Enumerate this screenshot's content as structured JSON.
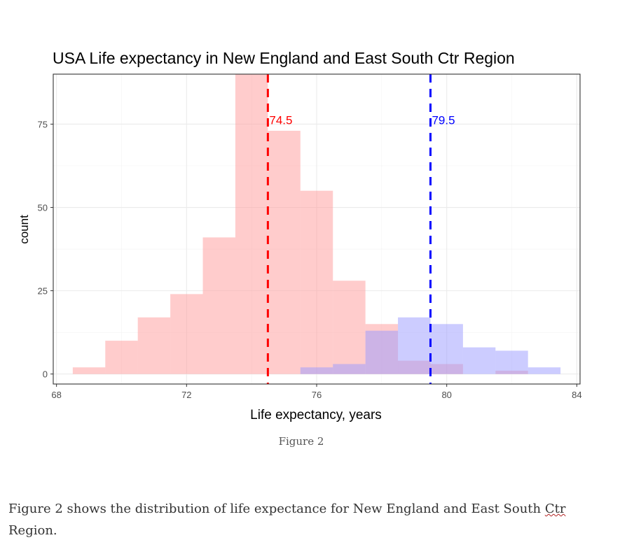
{
  "chart_data": {
    "type": "histogram",
    "title": "USA Life expectancy in New England and East South Ctr Region",
    "xlabel": "Life expectancy, years",
    "ylabel": "count",
    "xlim": [
      67.9,
      84.1
    ],
    "ylim": [
      -3,
      90
    ],
    "x_ticks": [
      68,
      72,
      76,
      80,
      84
    ],
    "y_ticks": [
      0,
      25,
      50,
      75
    ],
    "bin_width": 1,
    "series": [
      {
        "color": "#ff9999",
        "bins": [
          {
            "x0": 68.5,
            "x1": 69.5,
            "count": 2
          },
          {
            "x0": 69.5,
            "x1": 70.5,
            "count": 10
          },
          {
            "x0": 70.5,
            "x1": 71.5,
            "count": 17
          },
          {
            "x0": 71.5,
            "x1": 72.5,
            "count": 24
          },
          {
            "x0": 72.5,
            "x1": 73.5,
            "count": 41
          },
          {
            "x0": 73.5,
            "x1": 74.5,
            "count": 90
          },
          {
            "x0": 74.5,
            "x1": 75.5,
            "count": 73
          },
          {
            "x0": 75.5,
            "x1": 76.5,
            "count": 55
          },
          {
            "x0": 76.5,
            "x1": 77.5,
            "count": 28
          },
          {
            "x0": 77.5,
            "x1": 78.5,
            "count": 15
          },
          {
            "x0": 78.5,
            "x1": 79.5,
            "count": 4
          },
          {
            "x0": 79.5,
            "x1": 80.5,
            "count": 3
          },
          {
            "x0": 80.5,
            "x1": 81.5,
            "count": 0
          },
          {
            "x0": 81.5,
            "x1": 82.5,
            "count": 1
          }
        ]
      },
      {
        "color": "#9999ff",
        "bins": [
          {
            "x0": 75.5,
            "x1": 76.5,
            "count": 2
          },
          {
            "x0": 76.5,
            "x1": 77.5,
            "count": 3
          },
          {
            "x0": 77.5,
            "x1": 78.5,
            "count": 13
          },
          {
            "x0": 78.5,
            "x1": 79.5,
            "count": 17
          },
          {
            "x0": 79.5,
            "x1": 80.5,
            "count": 15
          },
          {
            "x0": 80.5,
            "x1": 81.5,
            "count": 8
          },
          {
            "x0": 81.5,
            "x1": 82.5,
            "count": 7
          },
          {
            "x0": 82.5,
            "x1": 83.5,
            "count": 2
          }
        ]
      }
    ],
    "reference_lines": [
      {
        "x": 74.5,
        "label": "74.5",
        "color": "#ff0000"
      },
      {
        "x": 79.5,
        "label": "79.5",
        "color": "#0000ff"
      }
    ],
    "grid": true
  },
  "figure_caption": "Figure 2",
  "paragraph": {
    "part1": " Figure 2 shows the distribution of life expectance for New England and East South ",
    "misspelled": "Ctr",
    "part2": "Region."
  }
}
